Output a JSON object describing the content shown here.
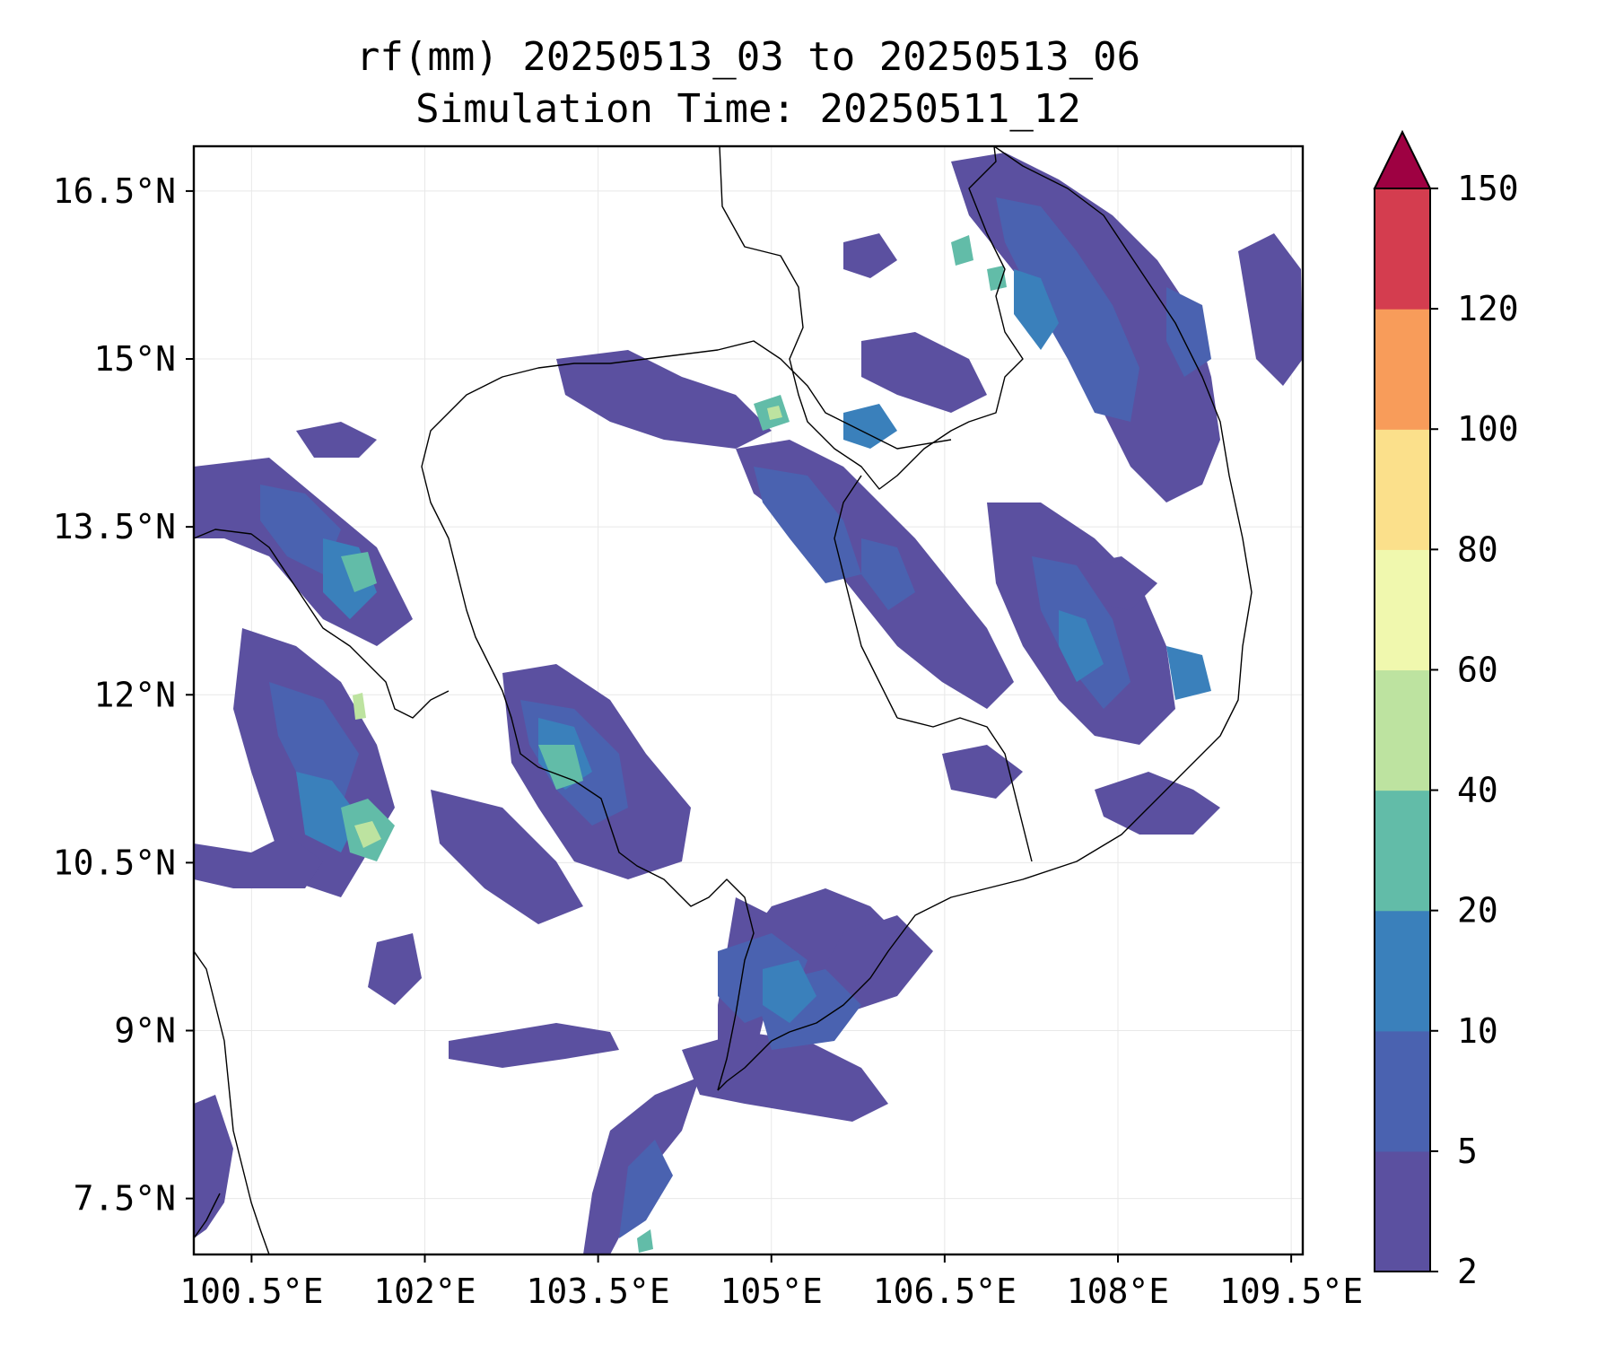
{
  "title": {
    "line1": "rf(mm) 20250513_03 to 20250513_06",
    "line2": "Simulation Time: 20250511_12"
  },
  "map": {
    "lon_range": [
      100.0,
      109.6
    ],
    "lat_range": [
      7.0,
      16.9
    ],
    "x_ticks": [
      {
        "value": 100.5,
        "label": "100.5°E"
      },
      {
        "value": 102.0,
        "label": "102°E"
      },
      {
        "value": 103.5,
        "label": "103.5°E"
      },
      {
        "value": 105.0,
        "label": "105°E"
      },
      {
        "value": 106.5,
        "label": "106.5°E"
      },
      {
        "value": 108.0,
        "label": "108°E"
      },
      {
        "value": 109.5,
        "label": "109.5°E"
      }
    ],
    "y_ticks": [
      {
        "value": 16.5,
        "label": "16.5°N"
      },
      {
        "value": 15.0,
        "label": "15°N"
      },
      {
        "value": 13.5,
        "label": "13.5°N"
      },
      {
        "value": 12.0,
        "label": "12°N"
      },
      {
        "value": 10.5,
        "label": "10.5°N"
      },
      {
        "value": 9.0,
        "label": "9°N"
      },
      {
        "value": 7.5,
        "label": "7.5°N"
      }
    ],
    "grid": true
  },
  "colorbar": {
    "extend": "max",
    "levels": [
      "2",
      "5",
      "10",
      "20",
      "40",
      "60",
      "80",
      "100",
      "120",
      "150"
    ],
    "colors": [
      "#5b50a0",
      "#4a62b0",
      "#3a80bb",
      "#62bca8",
      "#bde3a0",
      "#f0f8ae",
      "#fbe08b",
      "#f89c5a",
      "#d43d4f",
      "#9e0142"
    ]
  }
}
